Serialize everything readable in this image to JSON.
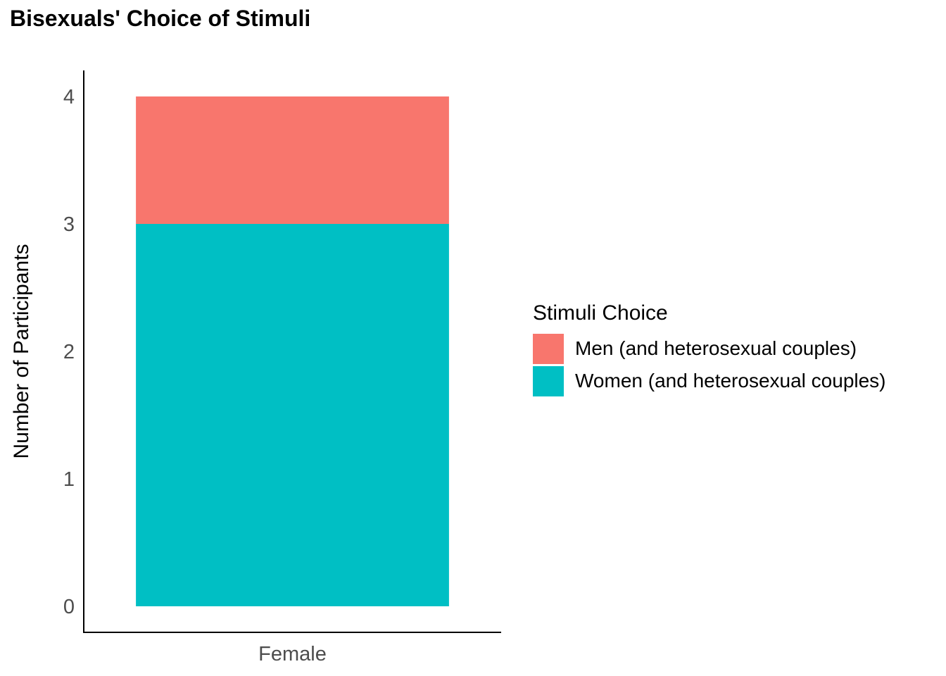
{
  "chart_data": {
    "type": "bar",
    "stacked": true,
    "title": "Bisexuals' Choice of Stimuli",
    "xlabel": "",
    "ylabel": "Number of Participants",
    "categories": [
      "Female"
    ],
    "series": [
      {
        "name": "Women (and heterosexual couples)",
        "values": [
          3
        ],
        "color": "#00BFC4"
      },
      {
        "name": "Men (and heterosexual couples)",
        "values": [
          1
        ],
        "color": "#F8766D"
      }
    ],
    "ylim": [
      0,
      4
    ],
    "yticks": [
      "0",
      "1",
      "2",
      "3",
      "4"
    ],
    "grid": false,
    "legend": {
      "title": "Stimuli Choice",
      "placement": "right",
      "entries": [
        {
          "label": "Men (and heterosexual couples)",
          "color": "#F8766D"
        },
        {
          "label": "Women (and heterosexual couples)",
          "color": "#00BFC4"
        }
      ]
    }
  }
}
